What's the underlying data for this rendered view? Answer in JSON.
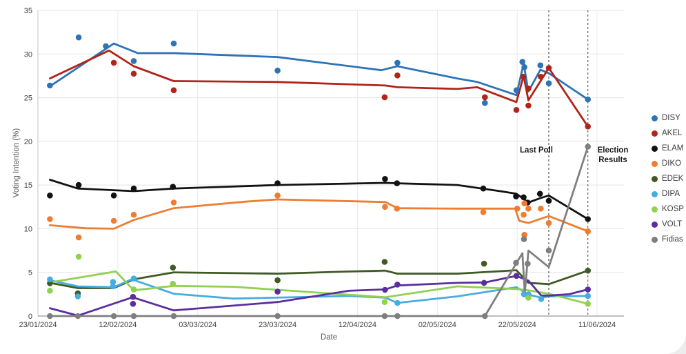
{
  "chart": {
    "y_axis_title": "Voting Intention (%)",
    "x_axis_title": "Date"
  },
  "chart_data": {
    "type": "line",
    "title": "",
    "xlabel": "Date",
    "ylabel": "Voting Intention (%)",
    "ylim": [
      0,
      35
    ],
    "grid": true,
    "legend_position": "right",
    "y_axis": {
      "ticks": [
        0,
        5,
        10,
        15,
        20,
        25,
        30,
        35
      ]
    },
    "x_axis": {
      "tick_days": [
        0,
        20,
        40,
        60,
        80,
        100,
        120,
        140
      ],
      "tick_labels": [
        "23/01/2024",
        "12/02/2024",
        "03/03/2024",
        "23/03/2024",
        "12/04/2024",
        "02/05/2024",
        "22/05/2024",
        "11/06/2024"
      ]
    },
    "annotations": [
      {
        "label": "Last Poll",
        "day": 127.9
      },
      {
        "label": "Election Results",
        "day": 137.7
      }
    ],
    "series": [
      {
        "name": "DISY",
        "color": "#2E74B5",
        "line": [
          [
            3,
            26.3
          ],
          [
            19,
            31.2
          ],
          [
            25,
            30.1
          ],
          [
            34,
            30.1
          ],
          [
            60,
            29.65
          ],
          [
            86,
            28.15
          ],
          [
            90,
            28.6
          ],
          [
            105,
            27.2
          ],
          [
            110,
            26.8
          ],
          [
            119.8,
            25.3
          ],
          [
            121.6,
            28.9
          ],
          [
            122.8,
            25.7
          ],
          [
            125.8,
            28.2
          ],
          [
            127.9,
            27.8
          ],
          [
            137.7,
            24.8
          ]
        ],
        "points": [
          [
            3,
            26.4
          ],
          [
            10.2,
            31.9
          ],
          [
            17,
            30.9
          ],
          [
            24,
            29.2
          ],
          [
            34,
            31.2
          ],
          [
            60,
            28.1
          ],
          [
            90,
            29.0
          ],
          [
            111.9,
            24.4
          ],
          [
            119.8,
            25.85
          ],
          [
            121.3,
            29.1
          ],
          [
            121.8,
            28.5
          ],
          [
            125.8,
            28.7
          ],
          [
            127.9,
            26.65
          ],
          [
            137.7,
            24.8
          ]
        ]
      },
      {
        "name": "AKEL",
        "color": "#B0241A",
        "line": [
          [
            3,
            27.2
          ],
          [
            17.8,
            30.4
          ],
          [
            24,
            28.6
          ],
          [
            34,
            26.9
          ],
          [
            60,
            26.8
          ],
          [
            87,
            26.4
          ],
          [
            90,
            26.2
          ],
          [
            105,
            26.0
          ],
          [
            110,
            26.2
          ],
          [
            119.8,
            24.5
          ],
          [
            121.6,
            27.5
          ],
          [
            122.8,
            24.7
          ],
          [
            127.9,
            28.4
          ],
          [
            137.7,
            21.7
          ]
        ],
        "points": [
          [
            19,
            29.0
          ],
          [
            24,
            27.75
          ],
          [
            34,
            25.85
          ],
          [
            86.8,
            25.05
          ],
          [
            90,
            27.55
          ],
          [
            111.9,
            25.05
          ],
          [
            119.8,
            23.6
          ],
          [
            121.5,
            27.4
          ],
          [
            122.8,
            26.05
          ],
          [
            122.8,
            24.1
          ],
          [
            125.9,
            27.4
          ],
          [
            127.9,
            28.4
          ],
          [
            137.7,
            21.7
          ]
        ]
      },
      {
        "name": "ELAM",
        "color": "#121212",
        "line": [
          [
            3,
            15.6
          ],
          [
            10,
            14.6
          ],
          [
            24,
            14.3
          ],
          [
            34,
            14.6
          ],
          [
            60,
            15.0
          ],
          [
            87,
            15.25
          ],
          [
            90,
            15.2
          ],
          [
            105,
            15.0
          ],
          [
            115.7,
            14.3
          ],
          [
            119.8,
            14.0
          ],
          [
            121.6,
            13.4
          ],
          [
            122.8,
            13.0
          ],
          [
            125.8,
            13.5
          ],
          [
            127.9,
            13.8
          ],
          [
            137.7,
            11.1
          ]
        ],
        "points": [
          [
            3,
            13.8
          ],
          [
            10.2,
            15.0
          ],
          [
            19,
            13.8
          ],
          [
            24,
            14.6
          ],
          [
            33.8,
            14.8
          ],
          [
            60,
            15.2
          ],
          [
            86.9,
            15.7
          ],
          [
            89.9,
            15.2
          ],
          [
            111.5,
            14.6
          ],
          [
            119.7,
            13.7
          ],
          [
            121.6,
            13.6
          ],
          [
            122.6,
            13.0
          ],
          [
            125.7,
            14.0
          ],
          [
            127.9,
            13.2
          ],
          [
            137.7,
            11.1
          ]
        ]
      },
      {
        "name": "DIKO",
        "color": "#ED7D31",
        "line": [
          [
            3,
            10.4
          ],
          [
            12,
            10.05
          ],
          [
            19,
            10.0
          ],
          [
            24,
            11.0
          ],
          [
            34,
            12.35
          ],
          [
            52,
            13.1
          ],
          [
            60,
            13.35
          ],
          [
            87,
            13.05
          ],
          [
            90,
            12.35
          ],
          [
            105,
            12.3
          ],
          [
            119.5,
            12.3
          ],
          [
            120.5,
            10.9
          ],
          [
            122.8,
            10.65
          ],
          [
            127.9,
            11.45
          ],
          [
            137.7,
            9.7
          ]
        ],
        "points": [
          [
            3,
            11.1
          ],
          [
            10.2,
            9.0
          ],
          [
            19,
            10.9
          ],
          [
            24,
            11.6
          ],
          [
            34,
            13.0
          ],
          [
            60,
            13.8
          ],
          [
            86.9,
            12.5
          ],
          [
            89.9,
            12.3
          ],
          [
            111.5,
            11.9
          ],
          [
            120,
            12.3
          ],
          [
            121.6,
            11.6
          ],
          [
            121.8,
            12.9
          ],
          [
            121.8,
            9.3
          ],
          [
            122.8,
            12.3
          ],
          [
            125.9,
            12.3
          ],
          [
            127.9,
            10.65
          ],
          [
            137.7,
            9.7
          ]
        ]
      },
      {
        "name": "EDEK",
        "color": "#3F5A22",
        "line": [
          [
            3,
            3.8
          ],
          [
            10,
            3.2
          ],
          [
            19,
            3.2
          ],
          [
            24,
            4.2
          ],
          [
            34,
            5.0
          ],
          [
            60,
            4.85
          ],
          [
            78,
            5.1
          ],
          [
            87,
            5.2
          ],
          [
            90,
            4.85
          ],
          [
            105,
            4.85
          ],
          [
            119.8,
            5.25
          ],
          [
            122.8,
            3.8
          ],
          [
            127.9,
            3.65
          ],
          [
            137.7,
            5.2
          ]
        ],
        "points": [
          [
            3,
            3.75
          ],
          [
            10,
            2.6
          ],
          [
            33.8,
            5.55
          ],
          [
            60,
            4.1
          ],
          [
            86.8,
            6.2
          ],
          [
            111.7,
            6.0
          ],
          [
            137.7,
            5.2
          ]
        ]
      },
      {
        "name": "DIPA",
        "color": "#47ACDF",
        "line": [
          [
            3,
            4.1
          ],
          [
            10,
            3.4
          ],
          [
            19,
            3.3
          ],
          [
            23.5,
            4.2
          ],
          [
            34,
            2.55
          ],
          [
            49,
            2.0
          ],
          [
            78,
            2.3
          ],
          [
            87,
            2.1
          ],
          [
            90,
            1.5
          ],
          [
            105,
            2.25
          ],
          [
            119.8,
            3.3
          ],
          [
            122.8,
            2.45
          ],
          [
            126,
            2.1
          ],
          [
            127.9,
            2.25
          ],
          [
            137.7,
            2.3
          ]
        ],
        "points": [
          [
            3,
            4.2
          ],
          [
            10,
            2.25
          ],
          [
            18.8,
            3.9
          ],
          [
            18.8,
            3.4
          ],
          [
            24,
            4.3
          ],
          [
            90,
            1.5
          ],
          [
            121.7,
            2.5
          ],
          [
            122.8,
            2.5
          ],
          [
            126,
            1.95
          ],
          [
            137.7,
            2.3
          ]
        ]
      },
      {
        "name": "KOSP",
        "color": "#92D050",
        "line": [
          [
            3,
            3.85
          ],
          [
            19.5,
            5.1
          ],
          [
            24,
            2.95
          ],
          [
            34,
            3.45
          ],
          [
            49,
            3.35
          ],
          [
            87,
            2.15
          ],
          [
            105,
            3.4
          ],
          [
            119.8,
            3.1
          ],
          [
            122.8,
            2.95
          ],
          [
            127.9,
            2.55
          ],
          [
            137.7,
            1.4
          ]
        ],
        "points": [
          [
            3,
            2.9
          ],
          [
            10.2,
            6.8
          ],
          [
            24,
            3.05
          ],
          [
            33.8,
            3.7
          ],
          [
            86.8,
            1.6
          ],
          [
            122.8,
            2.1
          ],
          [
            137.7,
            1.4
          ]
        ]
      },
      {
        "name": "VOLT",
        "color": "#5B2D9E",
        "line": [
          [
            3,
            0.9
          ],
          [
            10,
            0.05
          ],
          [
            23.7,
            2.15
          ],
          [
            34,
            0.65
          ],
          [
            60,
            1.6
          ],
          [
            78,
            2.9
          ],
          [
            87,
            3.05
          ],
          [
            90,
            3.5
          ],
          [
            105,
            3.8
          ],
          [
            112,
            3.85
          ],
          [
            119.8,
            4.6
          ],
          [
            122.8,
            4.05
          ],
          [
            126,
            2.35
          ],
          [
            127.9,
            2.35
          ],
          [
            133,
            2.5
          ],
          [
            137.7,
            3.05
          ]
        ],
        "points": [
          [
            23.8,
            2.2
          ],
          [
            23.8,
            1.4
          ],
          [
            60,
            2.8
          ],
          [
            86.9,
            3.0
          ],
          [
            90,
            3.6
          ],
          [
            111.7,
            3.8
          ],
          [
            119.8,
            4.6
          ],
          [
            137.7,
            3.05
          ]
        ]
      },
      {
        "name": "Fidias",
        "color": "#7F7F7F",
        "line": [
          [
            3,
            0
          ],
          [
            111.9,
            0
          ],
          [
            121.3,
            7.2
          ],
          [
            121.9,
            2.6
          ],
          [
            122.8,
            7.5
          ],
          [
            127.9,
            5.6
          ],
          [
            137.7,
            19.4
          ]
        ],
        "points": [
          [
            3,
            0
          ],
          [
            10,
            0
          ],
          [
            19,
            0
          ],
          [
            24,
            0
          ],
          [
            34,
            0
          ],
          [
            60,
            0
          ],
          [
            86.8,
            0
          ],
          [
            90,
            0
          ],
          [
            111.9,
            0
          ],
          [
            119.7,
            6.1
          ],
          [
            121.7,
            8.8
          ],
          [
            122.6,
            6.0
          ],
          [
            127.9,
            7.5
          ],
          [
            137.7,
            19.4
          ]
        ]
      }
    ]
  }
}
